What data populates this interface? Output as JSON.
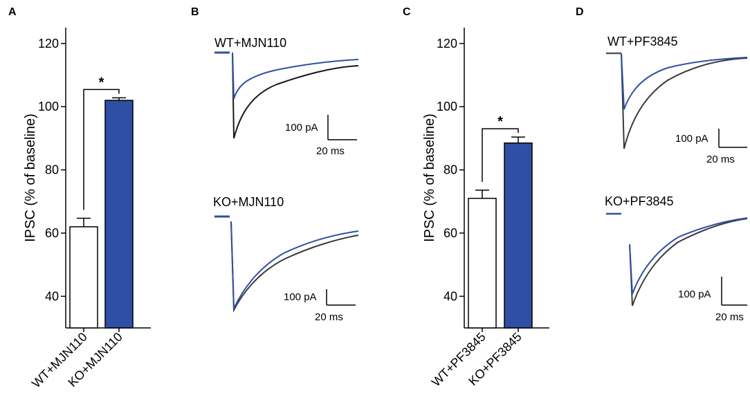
{
  "colors": {
    "wt": "#ffffff",
    "ko": "#2e4fa3",
    "trace_wt": "#1a1a1a",
    "trace_ko": "#2e4fa3",
    "axis": "#000000"
  },
  "panels": {
    "A": {
      "letter": "A"
    },
    "B": {
      "letter": "B"
    },
    "C": {
      "letter": "C"
    },
    "D": {
      "letter": "D"
    }
  },
  "chart_data": [
    {
      "panel": "A",
      "type": "bar",
      "ylabel": "IPSC (% of baseline)",
      "ylim": [
        30,
        125
      ],
      "yticks": [
        40,
        60,
        80,
        100,
        120
      ],
      "categories": [
        "WT+MJN110",
        "KO+MJN110"
      ],
      "values": [
        62,
        102
      ],
      "errors": [
        2.7,
        0.8
      ],
      "bar_colors": [
        "#ffffff",
        "#2e4fa3"
      ],
      "significance": "*"
    },
    {
      "panel": "C",
      "type": "bar",
      "ylabel": "IPSC (% of baseline)",
      "ylim": [
        30,
        125
      ],
      "yticks": [
        40,
        60,
        80,
        100,
        120
      ],
      "categories": [
        "WT+PF3845",
        "KO+PF3845"
      ],
      "values": [
        71,
        88.5
      ],
      "errors": [
        2.6,
        1.9
      ],
      "bar_colors": [
        "#ffffff",
        "#2e4fa3"
      ],
      "significance": "*"
    }
  ],
  "traces": {
    "B_top": {
      "label": "WT+MJN110",
      "scale_current": "100 pA",
      "scale_time": "20 ms"
    },
    "B_bottom": {
      "label": "KO+MJN110",
      "scale_current": "100 pA",
      "scale_time": "20 ms"
    },
    "D_top": {
      "label": "WT+PF3845",
      "scale_current": "100 pA",
      "scale_time": "20 ms"
    },
    "D_bottom": {
      "label": "KO+PF3845",
      "scale_current": "100 pA",
      "scale_time": "20 ms"
    }
  }
}
